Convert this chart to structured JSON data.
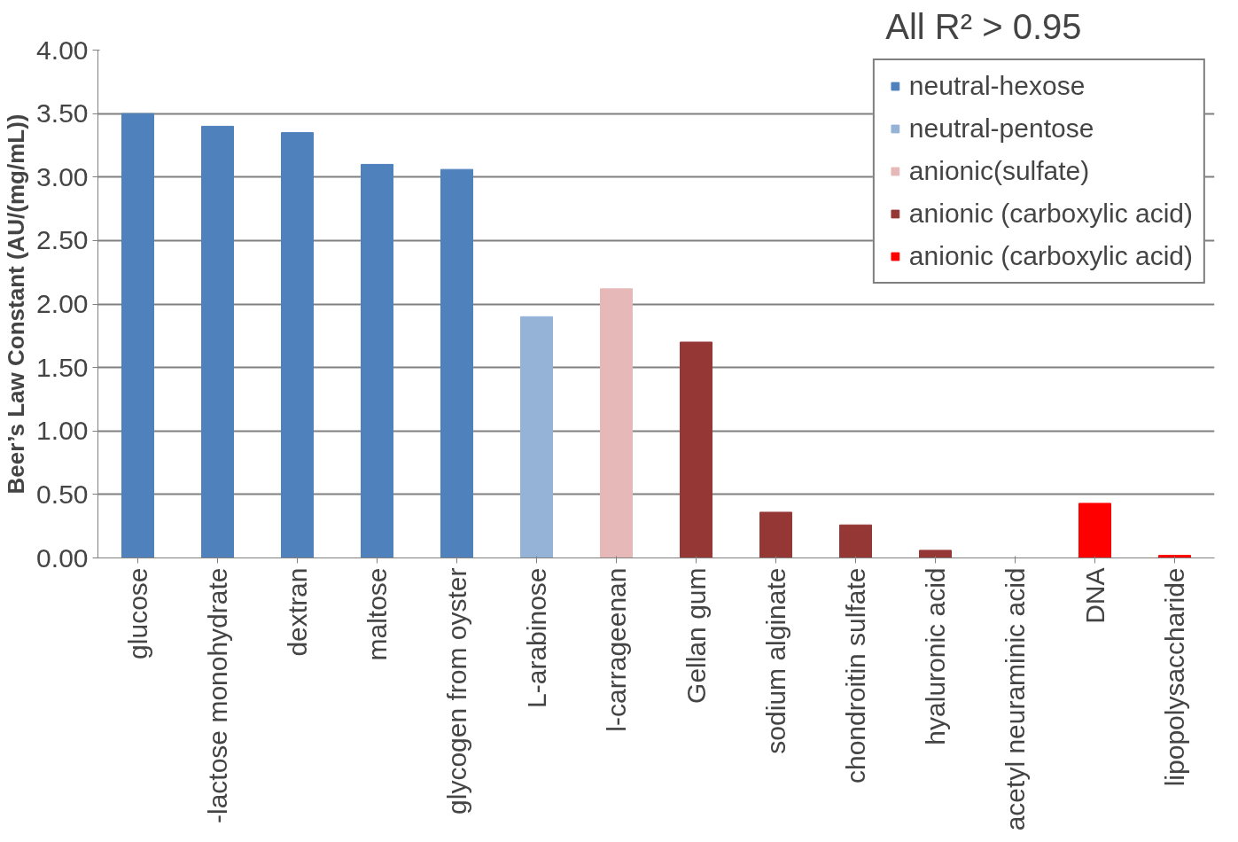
{
  "chart_data": {
    "type": "bar",
    "title": "All R² > 0.95",
    "ylabel": "Beer’s Law Constant (AU/(mg/mL))",
    "categories": [
      "glucose",
      "-lactose monohydrate",
      "dextran",
      "maltose",
      "glycogen from oyster",
      "L-arabinose",
      "l-carrageenan",
      "Gellan gum",
      "sodium alginate",
      "chondroitin sulfate",
      "hyaluronic acid",
      "acetyl neuraminic acid",
      "DNA",
      "lipopolysaccharide"
    ],
    "series": [
      {
        "name": "neutral-hexose",
        "color": "#4f81bd",
        "values": [
          3.5,
          3.4,
          3.35,
          3.1,
          3.06,
          null,
          null,
          null,
          null,
          null,
          null,
          null,
          null,
          null
        ]
      },
      {
        "name": "neutral-pentose",
        "color": "#95b3d7",
        "values": [
          null,
          null,
          null,
          null,
          null,
          1.9,
          null,
          null,
          null,
          null,
          null,
          null,
          null,
          null
        ]
      },
      {
        "name": "anionic(sulfate)",
        "color": "#e6b9b8",
        "values": [
          null,
          null,
          null,
          null,
          null,
          null,
          2.12,
          null,
          null,
          null,
          null,
          null,
          null,
          null
        ]
      },
      {
        "name": "anionic (carboxylic acid)",
        "color": "#953735",
        "values": [
          null,
          null,
          null,
          null,
          null,
          null,
          null,
          1.7,
          0.36,
          0.26,
          0.06,
          0.0,
          null,
          null
        ]
      },
      {
        "name": "anionic (carboxylic acid)",
        "color": "#ff0000",
        "values": [
          null,
          null,
          null,
          null,
          null,
          null,
          null,
          null,
          null,
          null,
          null,
          null,
          0.43,
          0.02
        ]
      }
    ],
    "ylim": [
      0,
      4
    ],
    "yticks": [
      {
        "value": 0,
        "label": "0.00"
      },
      {
        "value": 0.5,
        "label": "0.50"
      },
      {
        "value": 1,
        "label": "1.00"
      },
      {
        "value": 1.5,
        "label": "1.50"
      },
      {
        "value": 2,
        "label": "2.00"
      },
      {
        "value": 2.5,
        "label": "2.50"
      },
      {
        "value": 3,
        "label": "3.00"
      },
      {
        "value": 3.5,
        "label": "3.50"
      },
      {
        "value": 4,
        "label": "4.00"
      }
    ],
    "grid": "y",
    "legend": "top right"
  }
}
